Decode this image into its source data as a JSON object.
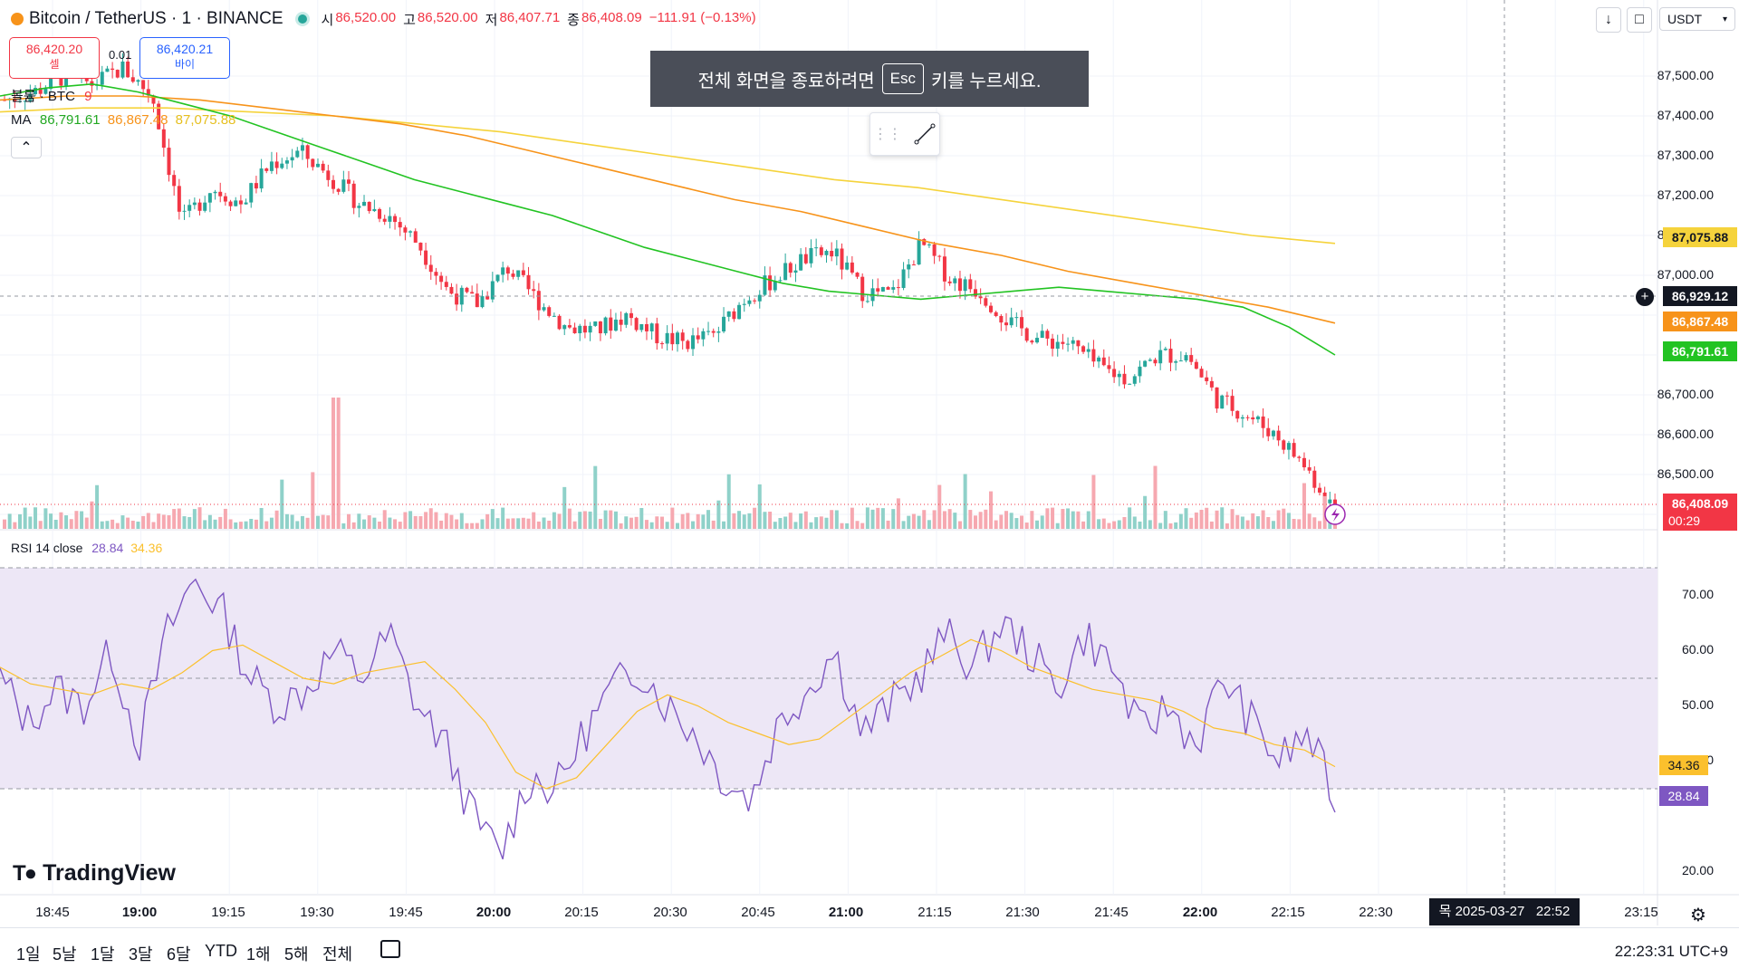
{
  "header": {
    "symbol": "Bitcoin / TetherUS · 1 · BINANCE",
    "open_label": "시",
    "open": "86,520.00",
    "high_label": "고",
    "high": "86,520.00",
    "low_label": "저",
    "low": "86,407.71",
    "close_label": "종",
    "close": "86,408.09",
    "change": "−111.91 (−0.13%)"
  },
  "trade": {
    "sell_price": "86,420.20",
    "sell_label": "셀",
    "spread": "0.01",
    "buy_price": "86,420.21",
    "buy_label": "바이"
  },
  "volume_legend": {
    "label": "볼륨 · BTC",
    "value": "9"
  },
  "ma_legend": {
    "label": "MA",
    "v1": "86,791.61",
    "v2": "86,867.48",
    "v3": "87,075.88"
  },
  "rsi_legend": {
    "label": "RSI 14 close",
    "v1": "28.84",
    "v2": "34.36"
  },
  "fullscreen_tooltip": {
    "before": "전체 화면을 종료하려면",
    "key": "Esc",
    "after": "키를 누르세요."
  },
  "currency_select": "USDT",
  "price_axis": [
    "87,500.00",
    "87,400.00",
    "87,300.00",
    "87,200.00",
    "87,100.00",
    "87,000.00",
    "86,700.00",
    "86,600.00",
    "86,500.00"
  ],
  "price_tags": {
    "ma3": "87,075.88",
    "crosshair": "86,929.12",
    "ma2": "86,867.48",
    "ma1": "86,791.61",
    "last": "86,408.09",
    "countdown": "00:29"
  },
  "rsi_axis": [
    "70.00",
    "60.00",
    "50.00",
    "40.00",
    "20.00"
  ],
  "rsi_tags": {
    "signal": "34.36",
    "rsi": "28.84"
  },
  "time_axis": [
    {
      "label": "18:45",
      "bold": false
    },
    {
      "label": "19:00",
      "bold": true
    },
    {
      "label": "19:15",
      "bold": false
    },
    {
      "label": "19:30",
      "bold": false
    },
    {
      "label": "19:45",
      "bold": false
    },
    {
      "label": "20:00",
      "bold": true
    },
    {
      "label": "20:15",
      "bold": false
    },
    {
      "label": "20:30",
      "bold": false
    },
    {
      "label": "20:45",
      "bold": false
    },
    {
      "label": "21:00",
      "bold": true
    },
    {
      "label": "21:15",
      "bold": false
    },
    {
      "label": "21:30",
      "bold": false
    },
    {
      "label": "21:45",
      "bold": false
    },
    {
      "label": "22:00",
      "bold": true
    },
    {
      "label": "22:15",
      "bold": false
    },
    {
      "label": "22:30",
      "bold": false
    },
    {
      "label": "23:15",
      "bold": false
    }
  ],
  "crosshair_time": "목 2025-03-27   22:52",
  "ranges": [
    "1일",
    "5날",
    "1달",
    "3달",
    "6달",
    "YTD",
    "1해",
    "5해",
    "전체"
  ],
  "clock": "22:23:31 UTC+9",
  "logo": "TradingView",
  "colors": {
    "up": "#26a69a",
    "down": "#f23645",
    "ma1": "#22c322",
    "ma2": "#f7931a",
    "ma3": "#f5d33c",
    "rsi": "#7e57c2",
    "rsi_ma": "#fbc02d",
    "rsi_band": "#ede7f6"
  },
  "chart_data": {
    "type": "line",
    "price_candles_close_sampled": [
      87440,
      87460,
      87500,
      87480,
      87520,
      87450,
      87130,
      87220,
      87180,
      87280,
      87310,
      87250,
      87180,
      87150,
      87080,
      86960,
      86930,
      87020,
      86940,
      86870,
      86860,
      86900,
      86850,
      86830,
      86850,
      86940,
      86990,
      87040,
      87060,
      86960,
      86950,
      87080,
      86990,
      86960,
      86880,
      86840,
      86830,
      86770,
      86740,
      86800,
      86800,
      86690,
      86650,
      86600,
      86520,
      86408
    ],
    "ma1": [
      87450,
      87470,
      87480,
      87460,
      87430,
      87400,
      87360,
      87320,
      87280,
      87240,
      87210,
      87180,
      87150,
      87110,
      87070,
      87040,
      87010,
      86980,
      86960,
      86950,
      86940,
      86950,
      86960,
      86970,
      86960,
      86950,
      86940,
      86920,
      86870,
      86800
    ],
    "ma2": [
      87440,
      87450,
      87450,
      87440,
      87420,
      87400,
      87380,
      87350,
      87310,
      87270,
      87230,
      87190,
      87160,
      87120,
      87080,
      87050,
      87010,
      86980,
      86950,
      86920,
      86880
    ],
    "ma3": [
      87410,
      87420,
      87420,
      87410,
      87400,
      87380,
      87360,
      87330,
      87300,
      87270,
      87240,
      87220,
      87190,
      87160,
      87130,
      87100,
      87080
    ],
    "rsi_sampled": [
      50,
      42,
      48,
      45,
      55,
      38,
      58,
      68,
      62,
      50,
      45,
      48,
      55,
      50,
      58,
      45,
      38,
      25,
      18,
      32,
      30,
      40,
      48,
      52,
      45,
      40,
      32,
      28,
      42,
      48,
      55,
      40,
      45,
      50,
      58,
      52,
      60,
      55,
      48,
      58,
      52,
      40,
      45,
      38,
      50,
      42,
      35,
      40,
      28
    ],
    "rsi_ma_sampled": [
      52,
      49,
      48,
      47,
      49,
      48,
      51,
      55,
      56,
      53,
      50,
      49,
      51,
      52,
      53,
      48,
      42,
      33,
      30,
      32,
      38,
      44,
      47,
      45,
      42,
      40,
      38,
      39,
      43,
      47,
      51,
      54,
      57,
      55,
      52,
      50,
      48,
      47,
      46,
      44,
      41,
      40,
      38,
      37,
      34
    ],
    "rsi_levels": [
      30,
      50,
      70
    ],
    "xlabel": "",
    "ylabel": ""
  }
}
